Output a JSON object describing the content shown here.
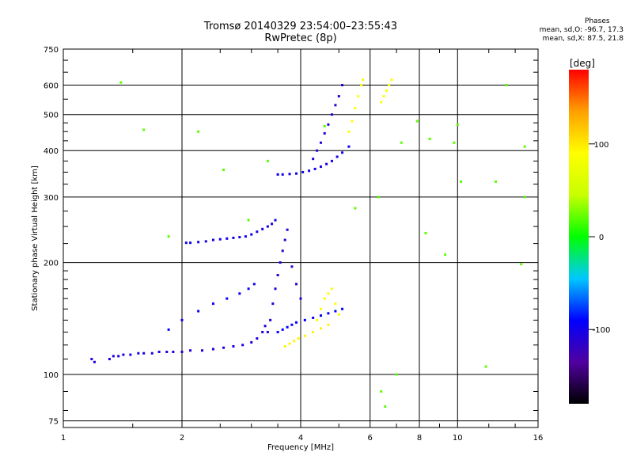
{
  "header": {
    "title_line1": "Tromsø 20140329 23:54:00–23:55:43",
    "title_line2": "RwPretec (8p)"
  },
  "phases": {
    "heading": "Phases",
    "line_o": "mean, sd,O: -96.7, 17.3",
    "line_x": "mean, sd,X:  87.5, 21.8"
  },
  "colorbar": {
    "label": "[deg]",
    "ticks": [
      "100",
      "0",
      "-100"
    ],
    "tick_values": [
      100,
      0,
      -100
    ],
    "range": [
      -180,
      180
    ],
    "colors": [
      "#000000",
      "#5000a0",
      "#0000ff",
      "#00c8ff",
      "#00ff00",
      "#c8ff00",
      "#ffff00",
      "#ffa000",
      "#ff0000"
    ]
  },
  "chart_data": {
    "type": "scatter",
    "title": "Tromsø 20140329 23:54:00–23:55:43",
    "subtitle": "RwPretec (8p)",
    "xlabel": "Frequency [MHz]",
    "ylabel": "Stationary phase Virtual Height [km]",
    "xscale": "log",
    "yscale": "log",
    "xlim": [
      1,
      16
    ],
    "ylim": [
      72,
      750
    ],
    "xticks": [
      1,
      2,
      4,
      6,
      8,
      10,
      16
    ],
    "xtick_labels": [
      "1",
      "2",
      "4",
      "6",
      "8",
      "10",
      "16"
    ],
    "yticks": [
      75,
      100,
      200,
      300,
      400,
      500,
      600,
      750
    ],
    "ytick_labels": [
      "75",
      "100",
      "200",
      "300",
      "400",
      "500",
      "600",
      "750"
    ],
    "grid": true,
    "series": [
      {
        "x": [
          1.18,
          1.2,
          1.31,
          1.34,
          1.38,
          1.42,
          1.48,
          1.55,
          1.6,
          1.68,
          1.75,
          1.83,
          1.9,
          2.0,
          2.1,
          2.25,
          2.4,
          2.55,
          2.7,
          2.85,
          3.0,
          3.1,
          3.2,
          3.25
        ],
        "y": [
          110,
          108,
          110,
          112,
          112,
          113,
          113,
          114,
          114,
          114,
          115,
          115,
          115,
          115,
          116,
          116,
          117,
          118,
          119,
          120,
          122,
          125,
          130,
          135
        ],
        "phase_deg": -105
      },
      {
        "x": [
          1.85,
          2.0,
          2.2,
          2.4,
          2.6,
          2.8,
          2.95,
          3.05
        ],
        "y": [
          132,
          140,
          148,
          155,
          160,
          165,
          170,
          175
        ],
        "phase_deg": -95
      },
      {
        "x": [
          2.05,
          2.1,
          2.2,
          2.3,
          2.4,
          2.5,
          2.6,
          2.7,
          2.8,
          2.9,
          3.0,
          3.1,
          3.2,
          3.3,
          3.38,
          3.45
        ],
        "y": [
          226,
          226,
          227,
          228,
          230,
          231,
          232,
          233,
          234,
          235,
          238,
          242,
          246,
          250,
          254,
          260
        ],
        "phase_deg": -100
      },
      {
        "x": [
          3.3,
          3.35,
          3.4,
          3.45,
          3.5,
          3.55,
          3.6,
          3.65,
          3.7,
          3.8,
          3.9,
          4.0
        ],
        "y": [
          130,
          140,
          155,
          170,
          185,
          200,
          215,
          230,
          245,
          195,
          175,
          160
        ],
        "phase_deg": -110
      },
      {
        "x": [
          3.5,
          3.6,
          3.75,
          3.9,
          4.05,
          4.2,
          4.35,
          4.5,
          4.65,
          4.8,
          4.95,
          5.1,
          5.3
        ],
        "y": [
          345,
          345,
          346,
          347,
          350,
          353,
          357,
          362,
          368,
          375,
          385,
          395,
          410
        ],
        "phase_deg": -100
      },
      {
        "x": [
          4.3,
          4.4,
          4.5,
          4.6,
          4.7,
          4.8,
          4.9,
          5.0,
          5.1
        ],
        "y": [
          380,
          400,
          420,
          445,
          470,
          500,
          530,
          560,
          600
        ],
        "phase_deg": -110
      },
      {
        "x": [
          3.5,
          3.6,
          3.7,
          3.8,
          3.9,
          4.1,
          4.3,
          4.5,
          4.7,
          4.9,
          5.1
        ],
        "y": [
          130,
          132,
          134,
          136,
          138,
          140,
          142,
          144,
          146,
          148,
          150
        ],
        "phase_deg": -90
      },
      {
        "x": [
          3.65,
          3.75,
          3.85,
          3.95,
          4.1,
          4.3,
          4.5,
          4.7
        ],
        "y": [
          119,
          121,
          123,
          125,
          127,
          130,
          133,
          136
        ],
        "phase_deg": 95
      },
      {
        "x": [
          4.4,
          4.5,
          4.6,
          4.7,
          4.8,
          4.9,
          5.0
        ],
        "y": [
          140,
          150,
          160,
          165,
          170,
          155,
          145
        ],
        "phase_deg": 88
      },
      {
        "x": [
          5.3,
          5.4,
          5.5,
          5.6,
          5.7,
          5.75
        ],
        "y": [
          450,
          480,
          520,
          560,
          600,
          620
        ],
        "phase_deg": 90
      },
      {
        "x": [
          6.4,
          6.5,
          6.6,
          6.7,
          6.8
        ],
        "y": [
          540,
          560,
          580,
          600,
          620
        ],
        "phase_deg": 85
      },
      {
        "x": [
          1.4,
          1.6,
          1.85,
          2.2,
          2.55,
          2.95,
          3.3,
          4.6,
          5.5,
          6.3,
          7.2,
          7.9,
          8.3,
          9.3,
          10.0,
          12.5,
          13.3,
          14.8,
          14.8,
          6.4,
          6.55,
          7.0,
          8.5,
          9.8,
          10.2,
          11.8,
          14.5
        ],
        "y": [
          610,
          455,
          235,
          450,
          355,
          260,
          375,
          465,
          280,
          300,
          420,
          480,
          240,
          210,
          470,
          330,
          600,
          410,
          300,
          90,
          82,
          100,
          430,
          420,
          330,
          105,
          198
        ],
        "phase_deg": 20
      }
    ]
  }
}
